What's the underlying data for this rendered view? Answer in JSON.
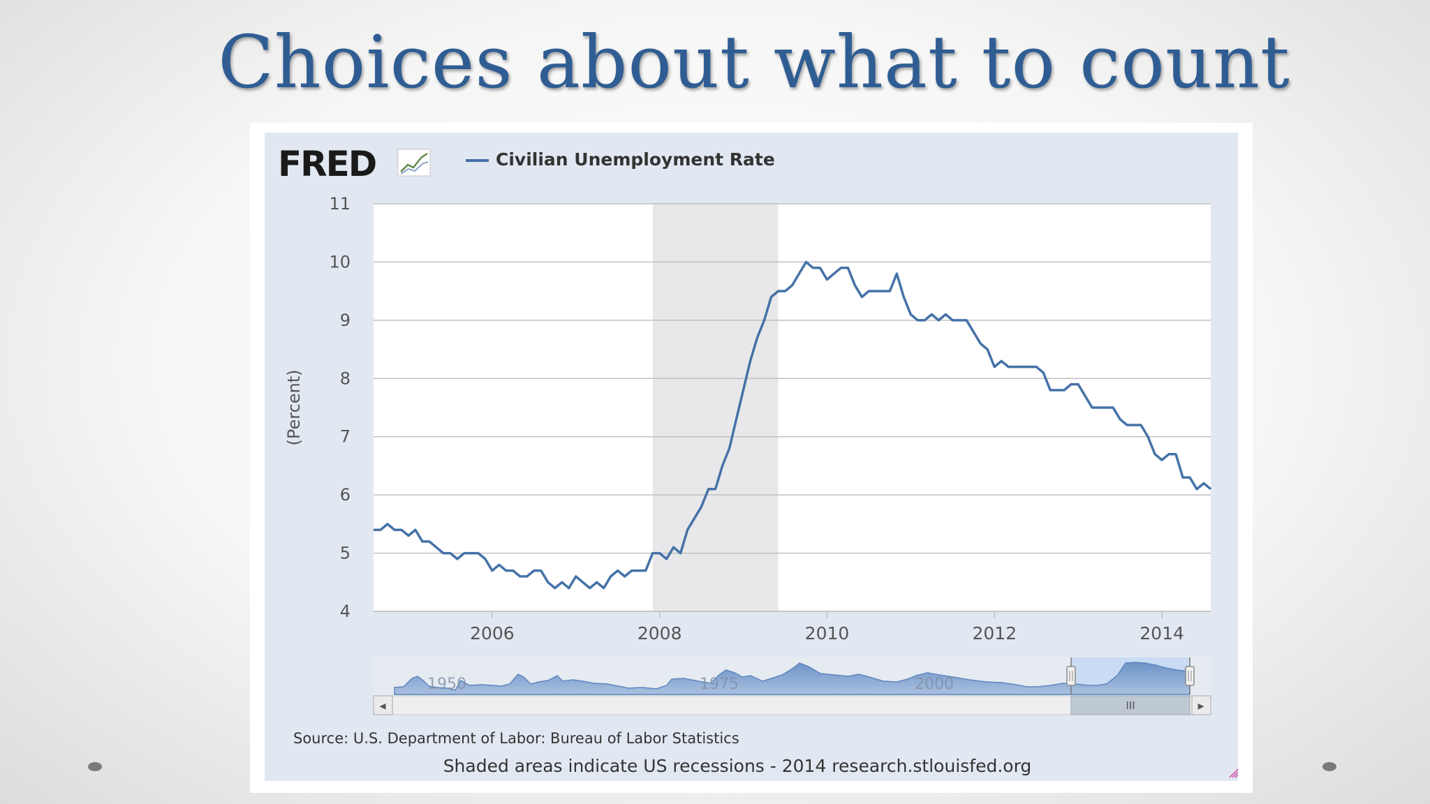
{
  "slide": {
    "title": "Choices about what to count"
  },
  "logo": {
    "text": "FRED",
    "icon": "chart-trend-icon"
  },
  "source_text": "Source: U.S. Department of Labor: Bureau of Labor Statistics",
  "footer_text": "Shaded areas indicate US recessions - 2014 research.stlouisfed.org",
  "navigator": {
    "labels": [
      "1950",
      "1975",
      "2000"
    ],
    "scroll_grip": "III",
    "left_arrow": "◂",
    "right_arrow": "▸"
  },
  "colors": {
    "title": "#2f5d93",
    "series": "#4572a7",
    "panel": "#e1e8f1",
    "recession": "#e8e8ea",
    "grid": "#c0c0c0"
  },
  "chart_data": {
    "type": "line",
    "title": "",
    "legend": [
      "Civilian Unemployment Rate"
    ],
    "ylabel": "(Percent)",
    "xlabel": "",
    "ylim": [
      4,
      11
    ],
    "yticks": [
      4,
      5,
      6,
      7,
      8,
      9,
      10,
      11
    ],
    "xlim": [
      2004.583,
      2014.583
    ],
    "xticks": [
      2006,
      2008,
      2010,
      2012,
      2014
    ],
    "recessions": [
      [
        2007.917,
        2009.417
      ]
    ],
    "series": [
      {
        "name": "Civilian Unemployment Rate",
        "start": 2004.583,
        "step": 0.08333,
        "values": [
          5.4,
          5.4,
          5.5,
          5.4,
          5.4,
          5.3,
          5.4,
          5.2,
          5.2,
          5.1,
          5.0,
          5.0,
          4.9,
          5.0,
          5.0,
          5.0,
          4.9,
          4.7,
          4.8,
          4.7,
          4.7,
          4.6,
          4.6,
          4.7,
          4.7,
          4.5,
          4.4,
          4.5,
          4.4,
          4.6,
          4.5,
          4.4,
          4.5,
          4.4,
          4.6,
          4.7,
          4.6,
          4.7,
          4.7,
          4.7,
          5.0,
          5.0,
          4.9,
          5.1,
          5.0,
          5.4,
          5.6,
          5.8,
          6.1,
          6.1,
          6.5,
          6.8,
          7.3,
          7.8,
          8.3,
          8.7,
          9.0,
          9.4,
          9.5,
          9.5,
          9.6,
          9.8,
          10.0,
          9.9,
          9.9,
          9.7,
          9.8,
          9.9,
          9.9,
          9.6,
          9.4,
          9.5,
          9.5,
          9.5,
          9.5,
          9.8,
          9.4,
          9.1,
          9.0,
          9.0,
          9.1,
          9.0,
          9.1,
          9.0,
          9.0,
          9.0,
          8.8,
          8.6,
          8.5,
          8.2,
          8.3,
          8.2,
          8.2,
          8.2,
          8.2,
          8.2,
          8.1,
          7.8,
          7.8,
          7.8,
          7.9,
          7.9,
          7.7,
          7.5,
          7.5,
          7.5,
          7.5,
          7.3,
          7.2,
          7.2,
          7.2,
          7.0,
          6.7,
          6.6,
          6.7,
          6.7,
          6.3,
          6.3,
          6.1,
          6.2,
          6.1
        ]
      }
    ]
  }
}
